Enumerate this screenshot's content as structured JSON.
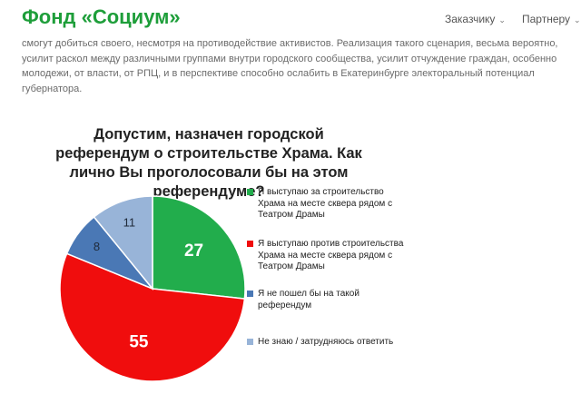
{
  "header": {
    "title": "Фонд «Социум»",
    "nav": [
      "Заказчику",
      "Партнеру"
    ]
  },
  "paragraph": "смогут добиться своего, несмотря на противодействие активистов. Реализация такого сценария, весьма вероятно, усилит раскол между различными группами внутри городского сообщества, усилит отчуждение граждан, особенно молодежи, от власти, от РПЦ, и в перспективе способно  ослабить в Екатеринбурге электоральный потенциал губернатора.",
  "chart_data": {
    "type": "pie",
    "title": "Допустим, назначен городской референдум о строительстве Храма. Как лично Вы проголосовали бы на этом референдуме?",
    "categories": [
      "Я выступаю за строительство Храма на месте сквера рядом с Театром Драмы",
      "Я выступаю против строительства Храма на месте сквера рядом с Театром Драмы",
      "Я не пошел бы на такой референдум",
      "Не знаю / затрудняюсь ответить"
    ],
    "values": [
      27,
      55,
      8,
      11
    ],
    "colors": [
      "#22ad4c",
      "#f00d0d",
      "#4a78b5",
      "#98b4d8"
    ],
    "label_colors": [
      "#ffffff",
      "#ffffff",
      "#1f2a3a",
      "#1f2a3a"
    ]
  }
}
